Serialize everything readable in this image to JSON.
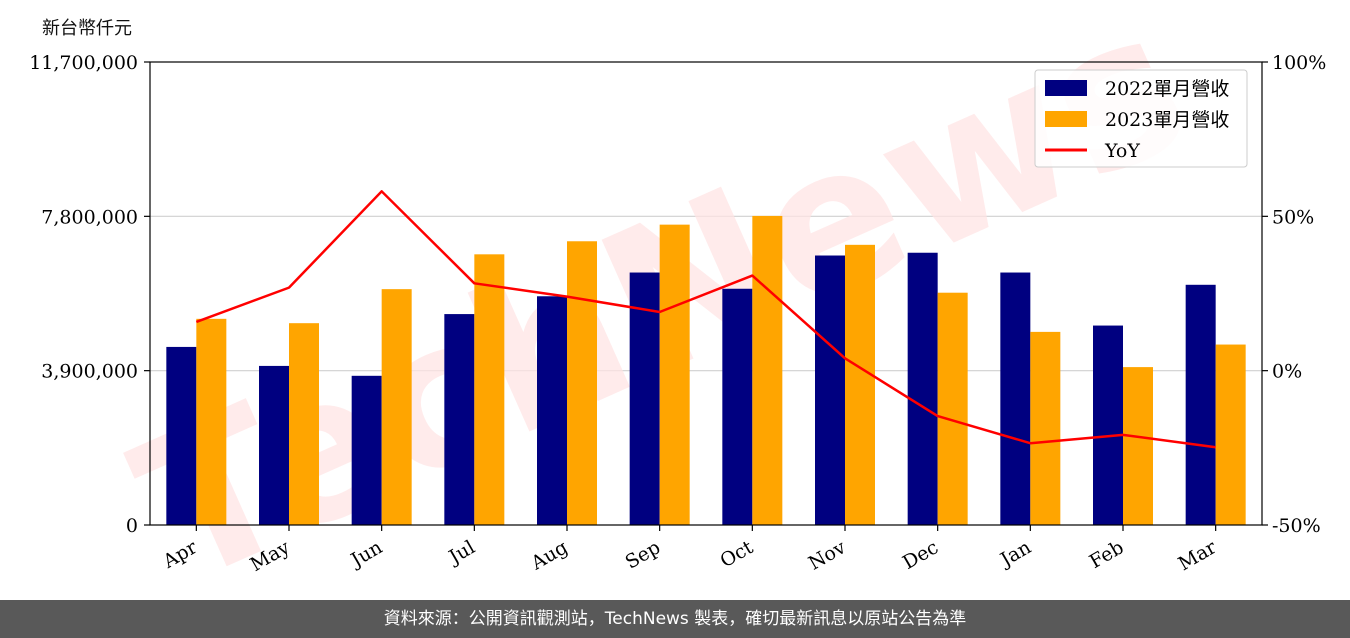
{
  "unit_label": "新台幣仟元",
  "watermark": "TechNews",
  "footer_text": "資料來源：公開資訊觀測站，TechNews 製表，確切最新訊息以原站公告為準",
  "colors": {
    "series_2022": "#000080",
    "series_2023": "#ffa500",
    "yoy": "#ff0000",
    "grid": "#d0d0d0",
    "footer_bg": "#595959"
  },
  "chart_data": {
    "type": "bar",
    "categories": [
      "Apr",
      "May",
      "Jun",
      "Jul",
      "Aug",
      "Sep",
      "Oct",
      "Nov",
      "Dec",
      "Jan",
      "Feb",
      "Mar"
    ],
    "series": [
      {
        "name": "2022單月營收",
        "values": [
          4500000,
          4020000,
          3770000,
          5330000,
          5780000,
          6380000,
          5970000,
          6810000,
          6880000,
          6380000,
          5040000,
          6070000
        ]
      },
      {
        "name": "2023單月營收",
        "values": [
          5210000,
          5100000,
          5960000,
          6840000,
          7170000,
          7590000,
          7810000,
          7080000,
          5870000,
          4880000,
          3990000,
          4560000
        ]
      }
    ],
    "line_series": {
      "name": "YoY",
      "axis": "right",
      "values": [
        15.8,
        26.9,
        58.1,
        28.3,
        24.0,
        19.0,
        30.8,
        4.0,
        -14.7,
        -23.5,
        -20.8,
        -24.8
      ]
    },
    "y_left": {
      "ylim": [
        0,
        11700000
      ],
      "ticks": [
        "0",
        "3,900,000",
        "7,800,000",
        "11,700,000"
      ],
      "tick_values": [
        0,
        3900000,
        7800000,
        11700000
      ]
    },
    "y_right": {
      "ylim": [
        -50,
        100
      ],
      "ticks": [
        "-50%",
        "0%",
        "50%",
        "100%"
      ],
      "tick_values": [
        -50,
        0,
        50,
        100
      ]
    },
    "grid": "horizontal",
    "legend": "top-right"
  }
}
